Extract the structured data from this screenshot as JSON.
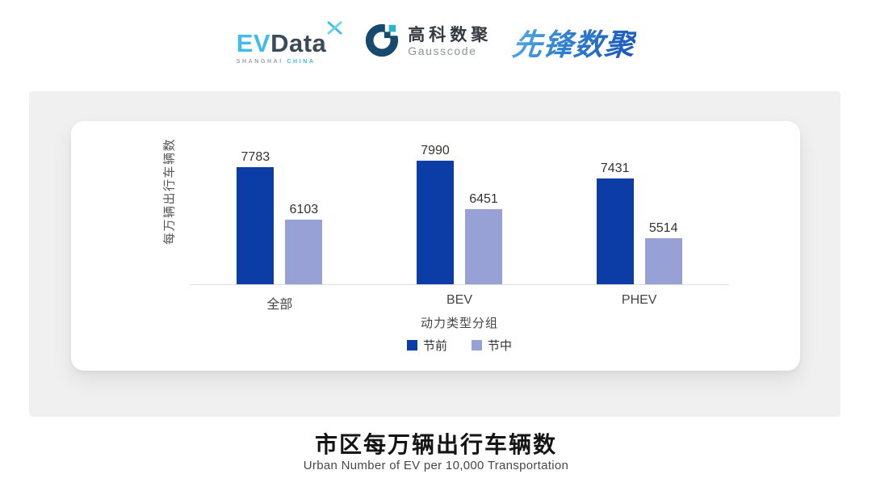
{
  "header": {
    "evdata": {
      "ev": "EV",
      "data": "Data",
      "sub_left": "SHANGHAI",
      "sub_right": "CHINA"
    },
    "gausscode": {
      "cn": "高科数聚",
      "en": "Gausscode"
    },
    "pioneer": {
      "text": "先锋数聚"
    }
  },
  "icons": {
    "evdata_mark": "x-star-icon",
    "gausscode_mark": "g-ring-icon"
  },
  "colors": {
    "series_pre": "#0c3ca6",
    "series_mid": "#97a1d6",
    "evdata_blue": "#3fbce9",
    "evdata_dark": "#3b4a59",
    "gausscode_dark": "#174a6e",
    "gausscode_teal": "#2ab5c9",
    "pioneer_blue": "#2470c8",
    "panel_gray": "#f0f0f1"
  },
  "chart_data": {
    "type": "bar",
    "categories": [
      "全部",
      "BEV",
      "PHEV"
    ],
    "series": [
      {
        "name": "节前",
        "color": "#0c3ca6",
        "values": [
          7783,
          7990,
          7431
        ]
      },
      {
        "name": "节中",
        "color": "#97a1d6",
        "values": [
          6103,
          6451,
          5514
        ]
      }
    ],
    "title": "",
    "xlabel": "动力类型分组",
    "ylabel": "每万辆出行车辆数",
    "ylim": [
      4000,
      8800
    ],
    "grid": false,
    "legend_position": "bottom",
    "value_labels": true
  },
  "footer": {
    "title": "市区每万辆出行车辆数",
    "subtitle": "Urban Number of EV per 10,000 Transportation"
  }
}
